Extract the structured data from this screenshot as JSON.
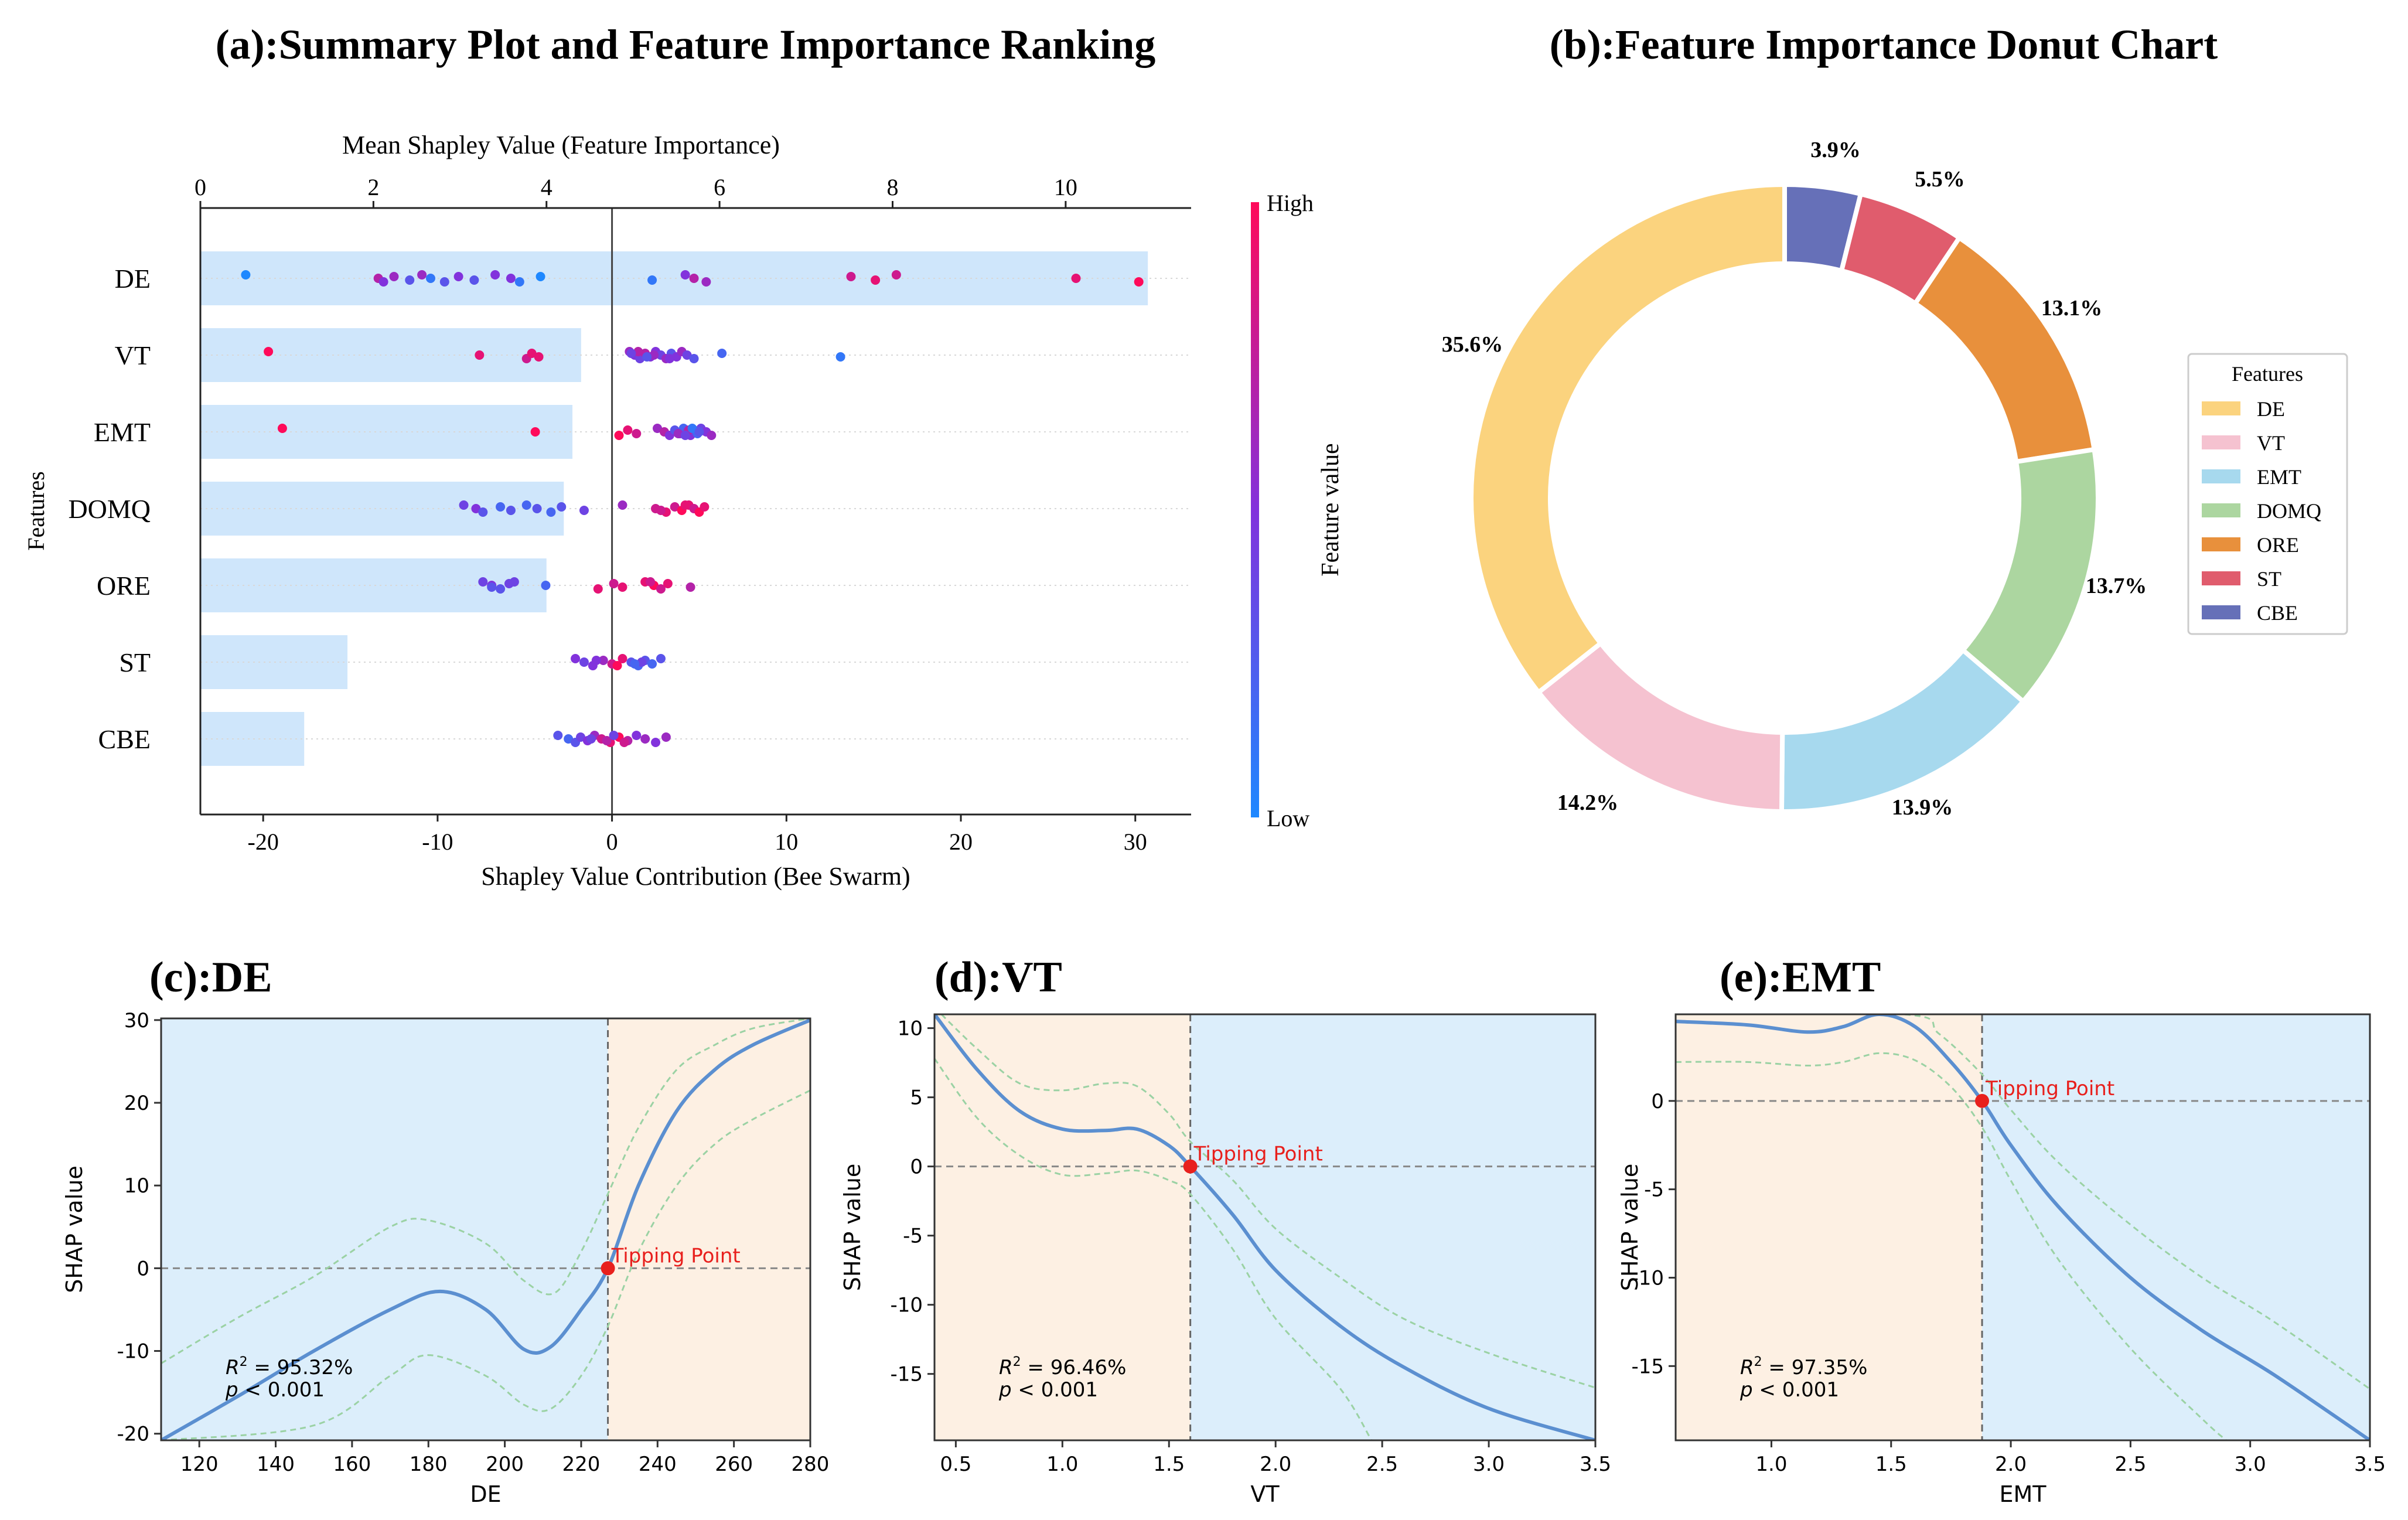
{
  "colors": {
    "importance_bar": "#cfe6fb",
    "pos_region": "#fdf0e3",
    "neg_region": "#dceefb",
    "curve": "#5b8fd0",
    "ci": "#9bd2a4",
    "tipping": "#e8201d",
    "cmap_low": "#1e88ff",
    "cmap_high": "#ff0a5a"
  },
  "chart_data": [
    {
      "id": "a",
      "type": "scatter",
      "title": "(a):Summary Plot  and Feature Importance Ranking",
      "top_axis_label": "Mean Shapley Value (Feature Importance)",
      "top_ticks": [
        0,
        2,
        4,
        6,
        8,
        10
      ],
      "top_xlim": [
        0,
        11.45
      ],
      "xlabel": "Shapley Value Contribution (Bee Swarm)",
      "xticks": [
        -20,
        -10,
        0,
        10,
        20,
        30
      ],
      "xlim": [
        -23.6,
        33.2
      ],
      "ylabel": "Features",
      "features": [
        "DE",
        "VT",
        "EMT",
        "DOMQ",
        "ORE",
        "ST",
        "CBE"
      ],
      "importance": [
        10.95,
        4.4,
        4.3,
        4.2,
        4.0,
        1.7,
        1.2
      ],
      "colorbar": {
        "label": "Feature value",
        "high": "High",
        "low": "Low"
      },
      "points": [
        [
          [
            -21,
            0.0
          ],
          [
            -13.4,
            0.7
          ],
          [
            -13.1,
            0.5
          ],
          [
            -12.5,
            0.6
          ],
          [
            -11.6,
            0.3
          ],
          [
            -10.9,
            0.6
          ],
          [
            -10.4,
            0.1
          ],
          [
            -9.6,
            0.3
          ],
          [
            -8.8,
            0.5
          ],
          [
            -7.9,
            0.3
          ],
          [
            -6.7,
            0.5
          ],
          [
            -5.8,
            0.5
          ],
          [
            -5.3,
            0.1
          ],
          [
            -4.1,
            0.0
          ],
          [
            2.3,
            0.1
          ],
          [
            4.2,
            0.5
          ],
          [
            4.7,
            0.7
          ],
          [
            5.4,
            0.6
          ],
          [
            13.7,
            0.8
          ],
          [
            15.1,
            0.9
          ],
          [
            16.3,
            0.8
          ],
          [
            26.6,
            0.9
          ],
          [
            30.2,
            1.0
          ]
        ],
        [
          [
            -19.7,
            1.0
          ],
          [
            -7.6,
            0.9
          ],
          [
            -4.9,
            0.8
          ],
          [
            -4.6,
            0.9
          ],
          [
            -4.2,
            0.9
          ],
          [
            1.0,
            0.6
          ],
          [
            1.3,
            0.5
          ],
          [
            1.6,
            0.4
          ],
          [
            1.9,
            0.7
          ],
          [
            2.2,
            0.5
          ],
          [
            2.5,
            0.5
          ],
          [
            2.8,
            0.4
          ],
          [
            3.1,
            0.6
          ],
          [
            3.4,
            0.3
          ],
          [
            3.7,
            0.5
          ],
          [
            4.0,
            0.6
          ],
          [
            4.3,
            0.4
          ],
          [
            4.7,
            0.3
          ],
          [
            6.3,
            0.2
          ],
          [
            13.1,
            0.1
          ],
          [
            1.5,
            0.7
          ],
          [
            2.4,
            0.6
          ],
          [
            3.3,
            0.5
          ],
          [
            1.1,
            0.4
          ],
          [
            2.0,
            0.3
          ]
        ],
        [
          [
            -18.9,
            1.0
          ],
          [
            -4.4,
            1.0
          ],
          [
            0.4,
            1.0
          ],
          [
            0.9,
            0.9
          ],
          [
            1.4,
            0.8
          ],
          [
            2.6,
            0.6
          ],
          [
            3.0,
            0.7
          ],
          [
            3.3,
            0.5
          ],
          [
            3.6,
            0.3
          ],
          [
            3.9,
            0.4
          ],
          [
            4.1,
            0.2
          ],
          [
            4.3,
            0.3
          ],
          [
            4.5,
            0.5
          ],
          [
            4.7,
            0.3
          ],
          [
            4.9,
            0.2
          ],
          [
            5.1,
            0.4
          ],
          [
            5.4,
            0.5
          ],
          [
            5.7,
            0.6
          ],
          [
            4.4,
            0.7
          ],
          [
            3.8,
            0.6
          ],
          [
            4.6,
            0.1
          ],
          [
            5.0,
            0.3
          ],
          [
            4.2,
            0.4
          ]
        ],
        [
          [
            -8.5,
            0.4
          ],
          [
            -7.8,
            0.5
          ],
          [
            -7.4,
            0.3
          ],
          [
            -6.4,
            0.2
          ],
          [
            -5.8,
            0.3
          ],
          [
            -4.9,
            0.2
          ],
          [
            -4.3,
            0.3
          ],
          [
            -3.5,
            0.2
          ],
          [
            -2.9,
            0.3
          ],
          [
            -1.6,
            0.4
          ],
          [
            0.6,
            0.6
          ],
          [
            2.5,
            0.8
          ],
          [
            3.1,
            0.9
          ],
          [
            3.6,
            0.8
          ],
          [
            4.0,
            1.0
          ],
          [
            4.4,
            0.9
          ],
          [
            4.7,
            0.8
          ],
          [
            5.0,
            1.0
          ],
          [
            5.3,
            0.9
          ],
          [
            2.8,
            0.8
          ],
          [
            4.2,
            0.9
          ]
        ],
        [
          [
            -7.4,
            0.4
          ],
          [
            -6.9,
            0.5
          ],
          [
            -6.4,
            0.3
          ],
          [
            -5.9,
            0.4
          ],
          [
            -6.9,
            0.3
          ],
          [
            -5.6,
            0.4
          ],
          [
            -3.8,
            0.2
          ],
          [
            -0.8,
            0.9
          ],
          [
            0.1,
            0.8
          ],
          [
            0.6,
            0.9
          ],
          [
            1.9,
            0.9
          ],
          [
            2.4,
            1.0
          ],
          [
            2.8,
            0.8
          ],
          [
            3.2,
            0.9
          ],
          [
            4.5,
            0.7
          ],
          [
            2.2,
            0.8
          ]
        ],
        [
          [
            -2.1,
            0.5
          ],
          [
            -1.6,
            0.4
          ],
          [
            -1.1,
            0.5
          ],
          [
            -0.5,
            0.6
          ],
          [
            0.0,
            0.8
          ],
          [
            0.6,
            0.9
          ],
          [
            1.1,
            0.3
          ],
          [
            1.5,
            0.2
          ],
          [
            1.9,
            0.3
          ],
          [
            2.3,
            0.2
          ],
          [
            2.8,
            0.3
          ],
          [
            1.7,
            0.4
          ],
          [
            0.3,
            1.0
          ],
          [
            -0.9,
            0.5
          ],
          [
            1.3,
            0.2
          ]
        ],
        [
          [
            -3.1,
            0.3
          ],
          [
            -2.5,
            0.2
          ],
          [
            -2.1,
            0.3
          ],
          [
            -1.8,
            0.4
          ],
          [
            -1.4,
            0.5
          ],
          [
            -1.0,
            0.6
          ],
          [
            -0.6,
            0.8
          ],
          [
            -0.1,
            0.9
          ],
          [
            0.4,
            1.0
          ],
          [
            0.9,
            0.7
          ],
          [
            1.4,
            0.5
          ],
          [
            1.9,
            0.6
          ],
          [
            2.5,
            0.5
          ],
          [
            3.1,
            0.6
          ],
          [
            -0.3,
            0.7
          ],
          [
            0.1,
            0.4
          ],
          [
            -1.2,
            0.4
          ],
          [
            0.7,
            0.8
          ]
        ]
      ]
    },
    {
      "id": "b",
      "type": "pie",
      "title": "(b):Feature Importance Donut Chart",
      "legend_title": "Features",
      "legend_position": "right",
      "labels": [
        "CBE",
        "ST",
        "ORE",
        "DOMQ",
        "EMT",
        "VT",
        "DE"
      ],
      "legend_labels": [
        "DE",
        "VT",
        "EMT",
        "DOMQ",
        "ORE",
        "ST",
        "CBE"
      ],
      "values": [
        3.9,
        5.5,
        13.1,
        13.7,
        13.9,
        14.2,
        35.6
      ],
      "value_labels": [
        "3.9%",
        "5.5%",
        "13.1%",
        "13.7%",
        "13.9%",
        "14.2%",
        "35.6%"
      ],
      "slice_colors": [
        "#6670b8",
        "#e05c6d",
        "#e8903c",
        "#acd6a0",
        "#a7d9ee",
        "#f5c2d0",
        "#fbd37e"
      ],
      "legend_colors": [
        "#fbd37e",
        "#f5c2d0",
        "#a7d9ee",
        "#acd6a0",
        "#e8903c",
        "#e05c6d",
        "#6670b8"
      ]
    },
    {
      "id": "c",
      "type": "line",
      "title": "(c):DE",
      "xlabel": "DE",
      "ylabel": "SHAP value",
      "xlim": [
        110,
        280
      ],
      "ylim": [
        -20.8,
        30.2
      ],
      "xticks": [
        120,
        140,
        160,
        180,
        200,
        220,
        240,
        260,
        280
      ],
      "yticks": [
        -20,
        -10,
        0,
        10,
        20,
        30
      ],
      "tipping_x": 227,
      "tipping_label": "Tipping Point",
      "left_region": "negative",
      "r2_text": "= 95.32%",
      "p_text": "< 0.001",
      "curve": [
        [
          110,
          -20.8
        ],
        [
          130,
          -15.5
        ],
        [
          150,
          -10
        ],
        [
          170,
          -5
        ],
        [
          183,
          -2.8
        ],
        [
          195,
          -5
        ],
        [
          205,
          -9.8
        ],
        [
          212,
          -9.5
        ],
        [
          220,
          -5
        ],
        [
          227,
          0
        ],
        [
          235,
          10
        ],
        [
          245,
          19
        ],
        [
          255,
          24
        ],
        [
          265,
          27
        ],
        [
          280,
          30
        ]
      ],
      "ci_upper": [
        [
          110,
          -11.5
        ],
        [
          130,
          -6
        ],
        [
          150,
          -1
        ],
        [
          170,
          5
        ],
        [
          180,
          5.8
        ],
        [
          195,
          3
        ],
        [
          205,
          -1.5
        ],
        [
          213,
          -3
        ],
        [
          220,
          2
        ],
        [
          227,
          9
        ],
        [
          235,
          17
        ],
        [
          245,
          24
        ],
        [
          255,
          27
        ],
        [
          265,
          29
        ],
        [
          280,
          30.2
        ]
      ],
      "ci_lower": [
        [
          110,
          -20.8
        ],
        [
          150,
          -19
        ],
        [
          170,
          -13
        ],
        [
          180,
          -10.5
        ],
        [
          195,
          -13
        ],
        [
          205,
          -16.5
        ],
        [
          212,
          -17
        ],
        [
          220,
          -13
        ],
        [
          227,
          -7
        ],
        [
          235,
          2
        ],
        [
          245,
          10
        ],
        [
          255,
          15
        ],
        [
          265,
          18
        ],
        [
          280,
          21.5
        ]
      ]
    },
    {
      "id": "d",
      "type": "line",
      "title": "(d):VT",
      "xlabel": "VT",
      "ylabel": "SHAP value",
      "xlim": [
        0.4,
        3.5
      ],
      "ylim": [
        -19.8,
        11
      ],
      "xticks": [
        0.5,
        1.0,
        1.5,
        2.0,
        2.5,
        3.0,
        3.5
      ],
      "yticks": [
        -15,
        -10,
        -5,
        0,
        5,
        10
      ],
      "tipping_x": 1.6,
      "tipping_label": "Tipping Point",
      "left_region": "positive",
      "r2_text": "= 96.46%",
      "p_text": "< 0.001",
      "curve": [
        [
          0.4,
          11
        ],
        [
          0.6,
          7
        ],
        [
          0.8,
          4
        ],
        [
          1.0,
          2.7
        ],
        [
          1.2,
          2.6
        ],
        [
          1.35,
          2.7
        ],
        [
          1.5,
          1.5
        ],
        [
          1.6,
          0
        ],
        [
          1.8,
          -3.5
        ],
        [
          2.0,
          -7.5
        ],
        [
          2.3,
          -11.5
        ],
        [
          2.6,
          -14.5
        ],
        [
          3.0,
          -17.5
        ],
        [
          3.5,
          -19.8
        ]
      ],
      "ci_upper": [
        [
          0.4,
          11.5
        ],
        [
          0.6,
          8.5
        ],
        [
          0.8,
          6
        ],
        [
          1.0,
          5.5
        ],
        [
          1.2,
          6
        ],
        [
          1.35,
          5.8
        ],
        [
          1.5,
          3.8
        ],
        [
          1.6,
          1.8
        ],
        [
          1.8,
          -1
        ],
        [
          2.0,
          -4.5
        ],
        [
          2.3,
          -8
        ],
        [
          2.6,
          -11
        ],
        [
          3.0,
          -13.5
        ],
        [
          3.5,
          -16
        ]
      ],
      "ci_lower": [
        [
          0.4,
          7.8
        ],
        [
          0.6,
          3.5
        ],
        [
          0.8,
          0.8
        ],
        [
          1.0,
          -0.6
        ],
        [
          1.2,
          -0.5
        ],
        [
          1.35,
          -0.3
        ],
        [
          1.5,
          -1
        ],
        [
          1.6,
          -2
        ],
        [
          1.8,
          -6
        ],
        [
          2.0,
          -11
        ],
        [
          2.3,
          -16
        ],
        [
          2.45,
          -19.8
        ]
      ]
    },
    {
      "id": "e",
      "type": "line",
      "title": "(e):EMT",
      "xlabel": "EMT",
      "ylabel": "SHAP value",
      "xlim": [
        0.6,
        3.5
      ],
      "ylim": [
        -19.2,
        4.9
      ],
      "xticks": [
        1.0,
        1.5,
        2.0,
        2.5,
        3.0,
        3.5
      ],
      "yticks": [
        -15,
        -10,
        -5,
        0
      ],
      "tipping_x": 1.88,
      "tipping_label": "Tipping Point",
      "left_region": "positive",
      "r2_text": "= 97.35%",
      "p_text": "< 0.001",
      "curve": [
        [
          0.6,
          4.5
        ],
        [
          0.9,
          4.3
        ],
        [
          1.15,
          3.9
        ],
        [
          1.3,
          4.2
        ],
        [
          1.45,
          4.9
        ],
        [
          1.6,
          4.2
        ],
        [
          1.75,
          2.2
        ],
        [
          1.88,
          0
        ],
        [
          2.0,
          -2.5
        ],
        [
          2.2,
          -6
        ],
        [
          2.5,
          -10
        ],
        [
          2.8,
          -13
        ],
        [
          3.1,
          -15.5
        ],
        [
          3.5,
          -19.2
        ]
      ],
      "ci_upper": [
        [
          0.6,
          4.9
        ],
        [
          1.55,
          4.9
        ],
        [
          1.7,
          3.8
        ],
        [
          1.88,
          1.5
        ],
        [
          2.0,
          -0.5
        ],
        [
          2.2,
          -3.5
        ],
        [
          2.5,
          -7
        ],
        [
          2.8,
          -10
        ],
        [
          3.1,
          -12.5
        ],
        [
          3.5,
          -16.3
        ]
      ],
      "ci_lower": [
        [
          0.6,
          2.2
        ],
        [
          0.9,
          2.2
        ],
        [
          1.15,
          2.0
        ],
        [
          1.3,
          2.2
        ],
        [
          1.45,
          2.7
        ],
        [
          1.6,
          2.3
        ],
        [
          1.75,
          0.8
        ],
        [
          1.88,
          -1.5
        ],
        [
          2.0,
          -4.5
        ],
        [
          2.2,
          -9
        ],
        [
          2.5,
          -14
        ],
        [
          2.8,
          -18
        ],
        [
          2.9,
          -19.2
        ]
      ]
    }
  ]
}
